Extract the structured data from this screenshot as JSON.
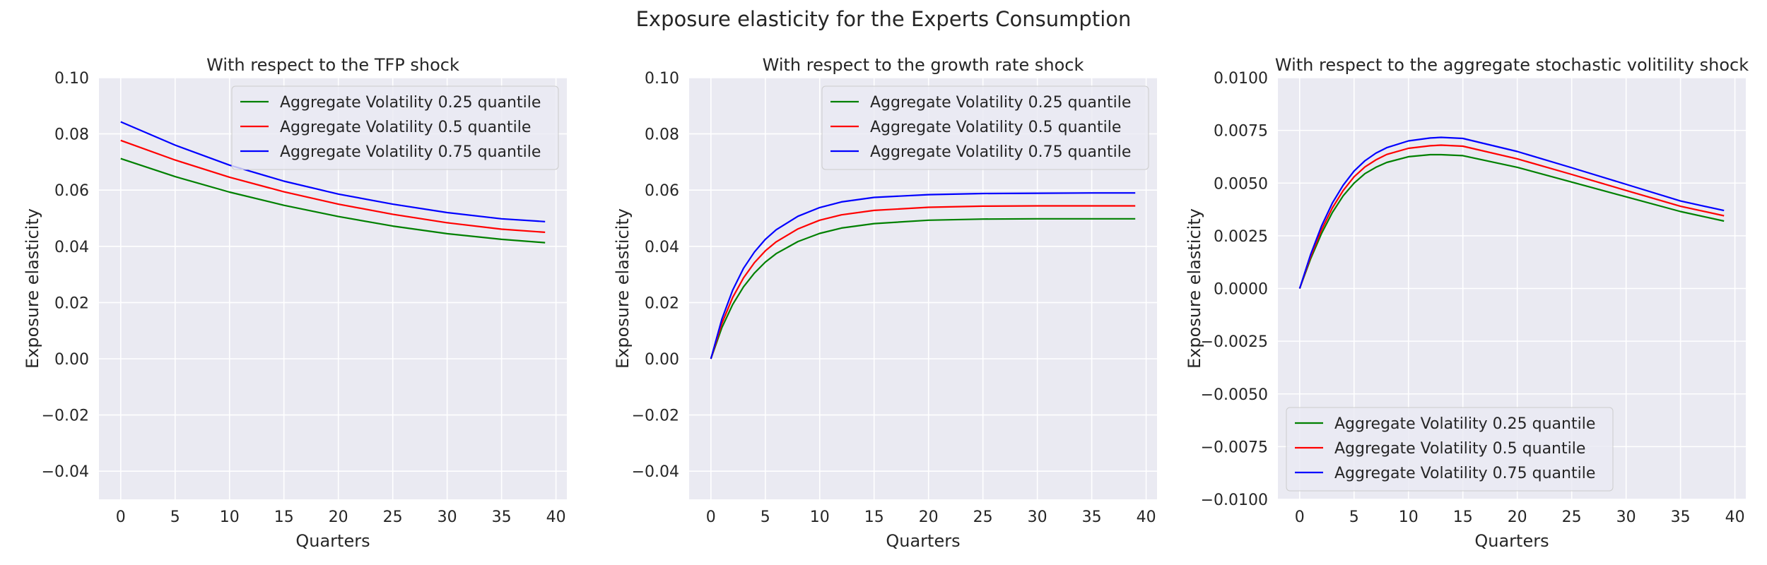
{
  "figure": {
    "title": "Exposure elasticity for the Experts Consumption"
  },
  "colors": {
    "background": "#EAEAF2",
    "grid": "#FFFFFF",
    "green": "#008000",
    "red": "#FF0000",
    "blue": "#0000FF"
  },
  "chart_data": [
    {
      "type": "line",
      "title": "With respect to the TFP shock",
      "xlabel": "Quarters",
      "ylabel": "Exposure elasticity",
      "xlim": [
        -2,
        41
      ],
      "ylim": [
        -0.05,
        0.1
      ],
      "xticks": [
        0,
        5,
        10,
        15,
        20,
        25,
        30,
        35,
        40
      ],
      "xtick_labels": [
        "0",
        "5",
        "10",
        "15",
        "20",
        "25",
        "30",
        "35",
        "40"
      ],
      "yticks": [
        -0.04,
        -0.02,
        0.0,
        0.02,
        0.04,
        0.06,
        0.08,
        0.1
      ],
      "ytick_labels": [
        "−0.04",
        "−0.02",
        "0.00",
        "0.02",
        "0.04",
        "0.06",
        "0.08",
        "0.10"
      ],
      "legend_position": "upper-right",
      "grid": true,
      "x": [
        0,
        5,
        10,
        15,
        20,
        25,
        30,
        35,
        39
      ],
      "series": [
        {
          "name": "Aggregate Volatility 0.25 quantile",
          "color": "#008000",
          "values": [
            0.0712,
            0.0648,
            0.0593,
            0.0546,
            0.0506,
            0.0472,
            0.0445,
            0.0425,
            0.0413
          ]
        },
        {
          "name": "Aggregate Volatility 0.5 quantile",
          "color": "#FF0000",
          "values": [
            0.0777,
            0.0707,
            0.0646,
            0.0594,
            0.055,
            0.0514,
            0.0484,
            0.0461,
            0.045
          ]
        },
        {
          "name": "Aggregate Volatility 0.75 quantile",
          "color": "#0000FF",
          "values": [
            0.0843,
            0.076,
            0.0689,
            0.0632,
            0.0586,
            0.055,
            0.052,
            0.0498,
            0.0488
          ]
        }
      ]
    },
    {
      "type": "line",
      "title": "With respect to the growth rate shock",
      "xlabel": "Quarters",
      "ylabel": "Exposure elasticity",
      "xlim": [
        -2,
        41
      ],
      "ylim": [
        -0.05,
        0.1
      ],
      "xticks": [
        0,
        5,
        10,
        15,
        20,
        25,
        30,
        35,
        40
      ],
      "xtick_labels": [
        "0",
        "5",
        "10",
        "15",
        "20",
        "25",
        "30",
        "35",
        "40"
      ],
      "yticks": [
        -0.04,
        -0.02,
        0.0,
        0.02,
        0.04,
        0.06,
        0.08,
        0.1
      ],
      "ytick_labels": [
        "−0.04",
        "−0.02",
        "0.00",
        "0.02",
        "0.04",
        "0.06",
        "0.08",
        "0.10"
      ],
      "legend_position": "upper-right",
      "grid": true,
      "x": [
        0,
        1,
        2,
        3,
        4,
        5,
        6,
        8,
        10,
        12,
        15,
        20,
        25,
        30,
        35,
        39
      ],
      "series": [
        {
          "name": "Aggregate Volatility 0.25 quantile",
          "color": "#008000",
          "values": [
            0.0,
            0.011,
            0.0193,
            0.0256,
            0.0305,
            0.0344,
            0.0374,
            0.0417,
            0.0446,
            0.0465,
            0.0481,
            0.0493,
            0.0497,
            0.0498,
            0.0498,
            0.0498
          ]
        },
        {
          "name": "Aggregate Volatility 0.5 quantile",
          "color": "#FF0000",
          "values": [
            0.0,
            0.0125,
            0.0218,
            0.0288,
            0.0342,
            0.0384,
            0.0416,
            0.0462,
            0.0493,
            0.0512,
            0.0528,
            0.0539,
            0.0543,
            0.0544,
            0.0544,
            0.0544
          ]
        },
        {
          "name": "Aggregate Volatility 0.75 quantile",
          "color": "#0000FF",
          "values": [
            0.0,
            0.014,
            0.0244,
            0.0322,
            0.038,
            0.0425,
            0.0459,
            0.0507,
            0.0538,
            0.0558,
            0.0574,
            0.0584,
            0.0588,
            0.0589,
            0.059,
            0.059
          ]
        }
      ]
    },
    {
      "type": "line",
      "title": "With respect to the aggregate stochastic volitility shock",
      "xlabel": "Quarters",
      "ylabel": "Exposure elasticity",
      "xlim": [
        -2,
        41
      ],
      "ylim": [
        -0.01,
        0.01
      ],
      "xticks": [
        0,
        5,
        10,
        15,
        20,
        25,
        30,
        35,
        40
      ],
      "xtick_labels": [
        "0",
        "5",
        "10",
        "15",
        "20",
        "25",
        "30",
        "35",
        "40"
      ],
      "yticks": [
        -0.01,
        -0.0075,
        -0.005,
        -0.0025,
        0.0,
        0.0025,
        0.005,
        0.0075,
        0.01
      ],
      "ytick_labels": [
        "−0.0100",
        "−0.0075",
        "−0.0050",
        "−0.0025",
        "0.0000",
        "0.0025",
        "0.0050",
        "0.0075",
        "0.0100"
      ],
      "legend_position": "lower-left",
      "grid": true,
      "x": [
        0,
        1,
        2,
        3,
        4,
        5,
        6,
        7,
        8,
        10,
        12,
        13,
        15,
        20,
        25,
        30,
        35,
        39
      ],
      "series": [
        {
          "name": "Aggregate Volatility 0.25 quantile",
          "color": "#008000",
          "values": [
            0.0,
            0.0014,
            0.0026,
            0.0036,
            0.0044,
            0.005,
            0.00545,
            0.00575,
            0.00598,
            0.00625,
            0.00635,
            0.00635,
            0.0063,
            0.00575,
            0.00505,
            0.00435,
            0.00365,
            0.0032
          ]
        },
        {
          "name": "Aggregate Volatility 0.5 quantile",
          "color": "#FF0000",
          "values": [
            0.0,
            0.0015,
            0.00277,
            0.00382,
            0.00465,
            0.0053,
            0.00577,
            0.0061,
            0.00636,
            0.00665,
            0.00677,
            0.0068,
            0.00675,
            0.00615,
            0.00541,
            0.00465,
            0.0039,
            0.00345
          ]
        },
        {
          "name": "Aggregate Volatility 0.75 quantile",
          "color": "#0000FF",
          "values": [
            0.0,
            0.0016,
            0.00295,
            0.00405,
            0.0049,
            0.00557,
            0.00606,
            0.00642,
            0.00668,
            0.007,
            0.00714,
            0.00717,
            0.00712,
            0.0065,
            0.00573,
            0.00494,
            0.00415,
            0.0037
          ]
        }
      ]
    }
  ]
}
